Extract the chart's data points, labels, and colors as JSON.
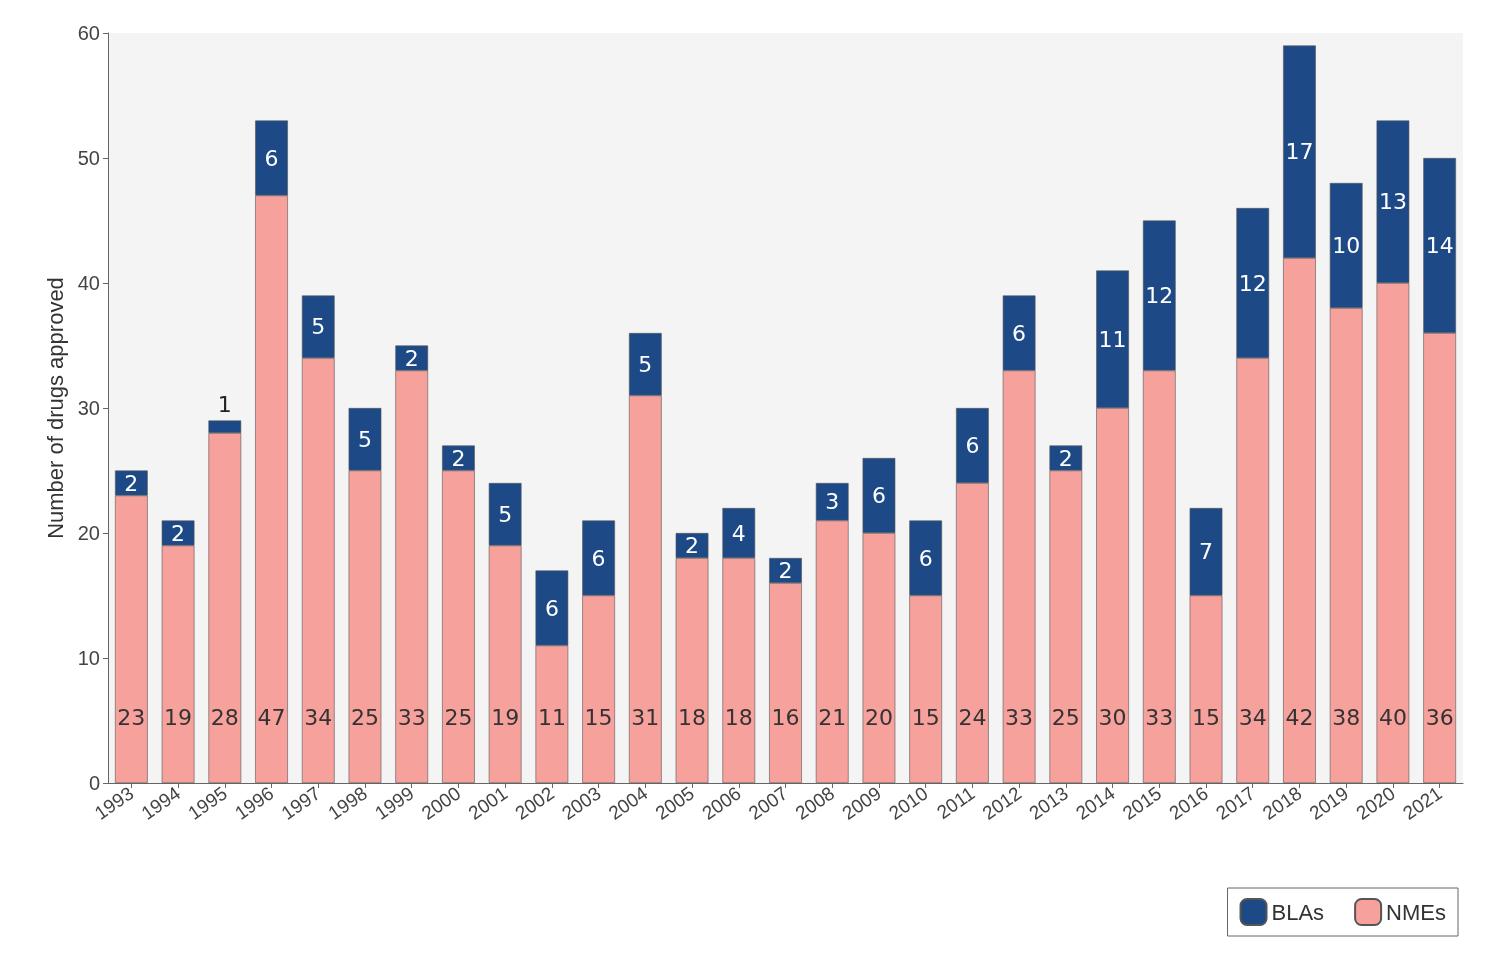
{
  "chart_data": {
    "type": "bar",
    "ylabel": "Number of drugs approved",
    "stacked": true,
    "data_labels": true,
    "legend": "bottom right",
    "grid": false,
    "categories": [
      "1993",
      "1994",
      "1995",
      "1996",
      "1997",
      "1998",
      "1999",
      "2000",
      "2001",
      "2002",
      "2003",
      "2004",
      "2005",
      "2006",
      "2007",
      "2008",
      "2009",
      "2010",
      "2011",
      "2012",
      "2013",
      "2014",
      "2015",
      "2016",
      "2017",
      "2018",
      "2019",
      "2020",
      "2021"
    ],
    "series": [
      {
        "name": "NMEs",
        "color": "#f7a19d",
        "values": [
          23,
          19,
          28,
          47,
          34,
          25,
          33,
          25,
          19,
          11,
          15,
          31,
          18,
          18,
          16,
          21,
          20,
          15,
          24,
          33,
          25,
          30,
          33,
          15,
          34,
          42,
          38,
          40,
          36
        ]
      },
      {
        "name": "BLAs",
        "color": "#1d4a86",
        "values": [
          2,
          2,
          1,
          6,
          5,
          5,
          2,
          2,
          5,
          6,
          6,
          5,
          2,
          4,
          2,
          3,
          6,
          6,
          6,
          6,
          2,
          11,
          12,
          7,
          12,
          17,
          10,
          13,
          14
        ]
      }
    ],
    "ylim": [
      0,
      60
    ],
    "yticks": [
      0,
      10,
      20,
      30,
      40,
      50,
      60
    ]
  }
}
